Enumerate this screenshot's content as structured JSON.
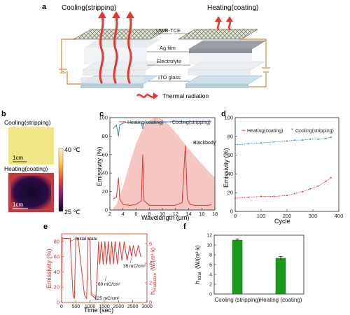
{
  "panel_a": {
    "label": "a",
    "cooling_title": "Cooling(stripping)",
    "heating_title": "Heating(coating)",
    "layer_labels": [
      "UWB-TCE",
      "Ag film",
      "Electrolyte",
      "ITO glass"
    ],
    "legend_text": "Thermal radiation"
  },
  "panel_b": {
    "label": "b",
    "cooling_title": "Cooling(stripping)",
    "heating_title": "Heating(coating)",
    "scale_text": "1cm",
    "colorbar_max": "40 ℃",
    "colorbar_min": "25 ℃"
  },
  "panel_c": {
    "label": "c",
    "legend": [
      "Heating(coating)",
      "Cooling(stripping)"
    ],
    "annotation": "Blackbody",
    "xlabel": "Wavelength (μm)",
    "ylabel": "Emissivity (%)",
    "xticks": [
      "2",
      "4",
      "6",
      "8",
      "10",
      "12",
      "14",
      "16",
      "18"
    ],
    "yticks": [
      "0",
      "20",
      "40",
      "60",
      "80",
      "100"
    ]
  },
  "panel_d": {
    "label": "d",
    "legend": [
      "Heating(coating)",
      "Cooling(stripping)"
    ],
    "xlabel": "Cycle",
    "ylabel": "Emissivity (%)",
    "xticks": [
      "0",
      "100",
      "200",
      "300",
      "400"
    ],
    "yticks": [
      "0",
      "20",
      "40",
      "60",
      "80",
      "100"
    ]
  },
  "panel_e": {
    "label": "e",
    "annotations": [
      "Initial state",
      "60 mC/cm²",
      "35 mC/cm²",
      "125 mC/cm²"
    ],
    "xlabel": "Time (sec)",
    "ylabel": "Emissivity (%)",
    "ylabel_right": "h",
    "ylabel_right_sub": "Radiative",
    "ylabel_right_unit": "(W/(m²·k)",
    "xticks": [
      "0",
      "500",
      "1000",
      "1500",
      "2000",
      "2500",
      "3000"
    ],
    "yticks": [
      "0",
      "20",
      "40",
      "60",
      "80"
    ],
    "yticks_right": [
      "0",
      "2",
      "4",
      "6"
    ]
  },
  "panel_f": {
    "label": "f",
    "ylabel": "h",
    "ylabel_sub": "total",
    "ylabel_unit": "(W/(m²·k)",
    "yticks": [
      "0",
      "2",
      "4",
      "6",
      "8",
      "10",
      "12"
    ]
  },
  "chart_data": [
    {
      "type": "line",
      "panel": "c",
      "xlabel": "Wavelength (μm)",
      "ylabel": "Emissivity (%)",
      "xlim": [
        2,
        18
      ],
      "ylim": [
        0,
        100
      ],
      "series": [
        {
          "name": "Heating(coating)",
          "x": [
            2.5,
            3.0,
            3.3,
            3.5,
            4.0,
            5.0,
            6.0,
            6.8,
            7.0,
            7.2,
            8.0,
            10.0,
            12.0,
            13.0,
            13.5,
            13.8,
            14.2,
            15.0,
            16.0,
            17.0,
            17.5
          ],
          "y": [
            12,
            14,
            35,
            12,
            6,
            5,
            6,
            10,
            60,
            10,
            5,
            5,
            5,
            8,
            70,
            12,
            6,
            5,
            5,
            5,
            6
          ]
        },
        {
          "name": "Cooling(stripping)",
          "x": [
            2.5,
            3.0,
            3.3,
            3.5,
            4.0,
            5.0,
            6.0,
            6.8,
            7.0,
            7.2,
            8.0,
            10.0,
            12.0,
            13.0,
            13.5,
            13.8,
            14.2,
            15.0,
            16.0,
            17.0,
            17.5
          ],
          "y": [
            88,
            92,
            80,
            92,
            94,
            95,
            95,
            94,
            88,
            94,
            95,
            95,
            96,
            96,
            95,
            96,
            96,
            96,
            96,
            96,
            96
          ]
        }
      ],
      "blackbody": {
        "x": [
          2.5,
          3,
          4,
          5,
          6,
          7,
          8,
          9,
          10,
          11,
          12,
          13,
          14,
          15,
          16,
          17,
          18
        ],
        "y": [
          2,
          6,
          25,
          50,
          72,
          88,
          97,
          100,
          98,
          92,
          84,
          75,
          66,
          58,
          50,
          42,
          35
        ]
      }
    },
    {
      "type": "scatter",
      "panel": "d",
      "xlabel": "Cycle",
      "ylabel": "Emissivity (%)",
      "xlim": [
        0,
        400
      ],
      "ylim": [
        0,
        100
      ],
      "series": [
        {
          "name": "Heating(coating)",
          "x": [
            0,
            50,
            100,
            150,
            200,
            230,
            260,
            290,
            320,
            350,
            370
          ],
          "y": [
            14,
            15,
            16,
            16,
            17,
            19,
            21,
            24,
            27,
            32,
            36
          ]
        },
        {
          "name": "Cooling(stripping)",
          "x": [
            0,
            50,
            100,
            150,
            200,
            230,
            260,
            290,
            320,
            350,
            370
          ],
          "y": [
            71,
            72,
            73,
            74,
            75,
            76,
            76,
            77,
            77,
            78,
            79
          ]
        }
      ]
    },
    {
      "type": "line",
      "panel": "e",
      "xlabel": "Time (sec)",
      "ylabel": "Emissivity (%)",
      "xlim": [
        0,
        3000
      ],
      "ylim": [
        0,
        90
      ],
      "x": [
        0,
        20,
        60,
        300,
        400,
        450,
        500,
        540,
        580,
        800,
        880,
        930,
        960,
        1000,
        1040,
        1200,
        1260,
        1300,
        1340,
        1400,
        1460,
        1520,
        1580,
        1640,
        1700,
        1760,
        1820,
        1880,
        1960,
        2040,
        2120,
        2200,
        2300,
        2400,
        2460,
        2520,
        2600,
        2700,
        2780
      ],
      "values": [
        5,
        85,
        84,
        84,
        10,
        5,
        85,
        84,
        84,
        10,
        5,
        85,
        84,
        80,
        10,
        5,
        45,
        80,
        50,
        80,
        50,
        80,
        50,
        80,
        50,
        80,
        50,
        80,
        50,
        80,
        55,
        80,
        55,
        75,
        60,
        75,
        60,
        75,
        60
      ]
    },
    {
      "type": "bar",
      "panel": "f",
      "categories": [
        "Cooling (stripping)",
        "Heating (coating)"
      ],
      "values": [
        11.0,
        7.3
      ],
      "errors": [
        0.25,
        0.35
      ],
      "ylim": [
        0,
        12
      ],
      "color": "#1a9a1a"
    }
  ],
  "colors": {
    "red": "#e8342e",
    "blue": "#3a7fc0",
    "green": "#1a9a1a",
    "blackbody_fill": "#f5c6c2"
  }
}
